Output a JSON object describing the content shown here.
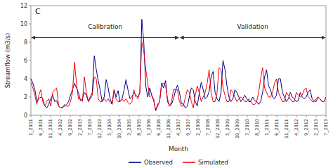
{
  "chart_data": {
    "type": "line",
    "title": "C",
    "xlabel": "Month",
    "ylabel": "Streamflow (m3/s)",
    "xlim": [
      0,
      149
    ],
    "xticks": [
      {
        "value": 0,
        "label": "1_2001"
      },
      {
        "value": 4.966666666666667,
        "label": "6_2001"
      },
      {
        "value": 9.933333333333334,
        "label": "11_2001"
      },
      {
        "value": 14.9,
        "label": "4_2002"
      },
      {
        "value": 19.866666666666667,
        "label": "9_2002"
      },
      {
        "value": 24.833333333333332,
        "label": "2_2003"
      },
      {
        "value": 29.8,
        "label": "7_2003"
      },
      {
        "value": 34.766666666666666,
        "label": "12_2003"
      },
      {
        "value": 39.733333333333334,
        "label": "5_2004"
      },
      {
        "value": 44.7,
        "label": "10_2004"
      },
      {
        "value": 49.666666666666664,
        "label": "3_2005"
      },
      {
        "value": 54.63333333333333,
        "label": "8_2005"
      },
      {
        "value": 59.6,
        "label": "1_2006"
      },
      {
        "value": 64.56666666666666,
        "label": "6_2006"
      },
      {
        "value": 69.53333333333333,
        "label": "11_2006"
      },
      {
        "value": 74.5,
        "label": "4_2007"
      },
      {
        "value": 79.46666666666667,
        "label": "9_2007"
      },
      {
        "value": 84.43333333333334,
        "label": "2_2008"
      },
      {
        "value": 89.4,
        "label": "7_2008"
      },
      {
        "value": 94.36666666666666,
        "label": "12_2008"
      },
      {
        "value": 99.33333333333333,
        "label": "5_2009"
      },
      {
        "value": 104.3,
        "label": "10_2009"
      },
      {
        "value": 109.26666666666667,
        "label": "3_2010"
      },
      {
        "value": 114.23333333333333,
        "label": "8_2010"
      },
      {
        "value": 119.2,
        "label": "1_2011"
      },
      {
        "value": 124.16666666666667,
        "label": "6_2011"
      },
      {
        "value": 129.13333333333333,
        "label": "11_2011"
      },
      {
        "value": 134.1,
        "label": "4_2012"
      },
      {
        "value": 139.06666666666666,
        "label": "9_2012"
      },
      {
        "value": 144.03333333333333,
        "label": "2_2013"
      },
      {
        "value": 149,
        "label": "7_2013"
      }
    ],
    "ylim": [
      0,
      12
    ],
    "yticks": [
      0,
      2,
      4,
      6,
      8,
      10,
      12
    ],
    "grid": false,
    "legend": "bottom",
    "x": [
      0,
      1,
      2,
      3,
      4,
      5,
      6,
      7,
      8,
      9,
      10,
      11,
      12,
      13,
      14,
      15,
      16,
      17,
      18,
      19,
      20,
      21,
      22,
      23,
      24,
      25,
      26,
      27,
      28,
      29,
      30,
      31,
      32,
      33,
      34,
      35,
      36,
      37,
      38,
      39,
      40,
      41,
      42,
      43,
      44,
      45,
      46,
      47,
      48,
      49,
      50,
      51,
      52,
      53,
      54,
      55,
      56,
      57,
      58,
      59,
      60,
      61,
      62,
      63,
      64,
      65,
      66,
      67,
      68,
      69,
      70,
      71,
      72,
      73,
      74,
      75,
      76,
      77,
      78,
      79,
      80,
      81,
      82,
      83,
      84,
      85,
      86,
      87,
      88,
      89,
      90,
      91,
      92,
      93,
      94,
      95,
      96,
      97,
      98,
      99,
      100,
      101,
      102,
      103,
      104,
      105,
      106,
      107,
      108,
      109,
      110,
      111,
      112,
      113,
      114,
      115,
      116,
      117,
      118,
      119,
      120,
      121,
      122,
      123,
      124,
      125,
      126,
      127,
      128,
      129,
      130,
      131,
      132,
      133,
      134,
      135,
      136,
      137,
      138,
      139,
      140,
      141,
      142,
      143,
      144,
      145,
      146,
      147,
      148,
      149
    ],
    "series": [
      {
        "name": "Observed",
        "color": "#00008B",
        "values": [
          4.0,
          3.5,
          2.8,
          1.5,
          1.8,
          2.0,
          1.8,
          1.0,
          0.8,
          1.2,
          1.8,
          2.2,
          1.5,
          1.6,
          1.0,
          0.8,
          0.9,
          1.0,
          1.2,
          1.5,
          2.2,
          2.8,
          3.5,
          3.0,
          2.5,
          1.6,
          1.8,
          2.5,
          2.2,
          1.5,
          2.0,
          2.5,
          6.5,
          5.0,
          3.8,
          2.7,
          1.5,
          2.0,
          3.9,
          3.0,
          1.8,
          1.2,
          2.8,
          2.0,
          2.7,
          1.5,
          1.8,
          2.7,
          3.9,
          2.8,
          1.8,
          2.0,
          2.5,
          2.2,
          2.0,
          2.5,
          10.5,
          8.0,
          3.2,
          2.0,
          3.0,
          2.2,
          1.6,
          0.5,
          1.2,
          1.5,
          3.5,
          3.0,
          3.8,
          1.5,
          1.0,
          1.2,
          1.8,
          2.7,
          3.3,
          2.5,
          1.3,
          1.2,
          0.8,
          1.0,
          2.0,
          3.0,
          2.8,
          1.5,
          1.0,
          2.4,
          3.6,
          2.8,
          1.8,
          2.0,
          2.6,
          4.2,
          4.8,
          2.5,
          1.8,
          1.5,
          2.5,
          6.0,
          5.0,
          3.2,
          2.0,
          1.5,
          1.8,
          2.8,
          2.5,
          2.0,
          1.5,
          1.8,
          2.2,
          1.8,
          1.5,
          1.5,
          2.0,
          1.6,
          1.5,
          1.2,
          1.5,
          2.5,
          4.2,
          5.0,
          3.2,
          2.8,
          2.0,
          1.8,
          2.2,
          4.0,
          4.0,
          2.5,
          2.0,
          1.5,
          1.8,
          2.5,
          2.0,
          1.8,
          1.5,
          1.6,
          2.5,
          2.0,
          1.8,
          2.0,
          2.5,
          2.8,
          1.8,
          1.6,
          1.5,
          2.0,
          1.8,
          1.5,
          1.5,
          2.0
        ]
      },
      {
        "name": "Simulated",
        "color": "#FF0000",
        "values": [
          3.6,
          3.0,
          2.2,
          1.2,
          2.2,
          2.8,
          1.5,
          1.0,
          1.5,
          1.8,
          1.0,
          2.5,
          2.8,
          3.0,
          1.0,
          0.8,
          0.8,
          1.2,
          1.0,
          1.0,
          1.5,
          2.5,
          5.8,
          3.5,
          1.8,
          1.8,
          1.5,
          4.2,
          2.5,
          1.5,
          1.8,
          2.2,
          4.2,
          4.0,
          1.8,
          1.5,
          1.5,
          1.8,
          1.5,
          1.8,
          1.4,
          1.2,
          2.8,
          1.8,
          1.5,
          1.5,
          1.8,
          1.5,
          1.8,
          1.4,
          1.2,
          1.5,
          2.8,
          2.0,
          1.8,
          2.5,
          8.0,
          7.0,
          5.0,
          3.5,
          2.0,
          2.2,
          1.8,
          0.5,
          1.0,
          1.5,
          3.5,
          3.5,
          3.2,
          1.8,
          1.0,
          1.5,
          2.8,
          2.8,
          2.8,
          1.5,
          1.0,
          1.0,
          2.0,
          2.8,
          2.5,
          1.5,
          0.8,
          2.2,
          3.2,
          2.5,
          1.5,
          2.0,
          2.5,
          3.5,
          5.0,
          2.5,
          1.5,
          1.5,
          2.5,
          5.2,
          5.0,
          3.0,
          2.2,
          1.5,
          1.5,
          2.8,
          2.5,
          2.0,
          1.5,
          1.8,
          2.0,
          1.8,
          1.5,
          1.5,
          1.8,
          1.5,
          1.2,
          1.2,
          1.5,
          2.5,
          4.0,
          5.2,
          3.0,
          2.5,
          2.0,
          2.0,
          2.5,
          3.5,
          4.0,
          2.5,
          2.0,
          1.5,
          1.5,
          2.5,
          2.2,
          1.8,
          1.5,
          1.5,
          2.5,
          2.2,
          2.0,
          2.2,
          2.8,
          3.0,
          2.0,
          1.8,
          1.5,
          1.5,
          1.8,
          2.0,
          1.8,
          1.5,
          1.5,
          2.0
        ]
      }
    ],
    "annotations": [
      {
        "text": "Calibration",
        "x_start": 0,
        "x_end": 75,
        "y": 8.5,
        "label_y": 9.5
      },
      {
        "text": "Validation",
        "x_start": 75,
        "x_end": 149,
        "y": 8.5,
        "label_y": 9.5
      }
    ]
  }
}
